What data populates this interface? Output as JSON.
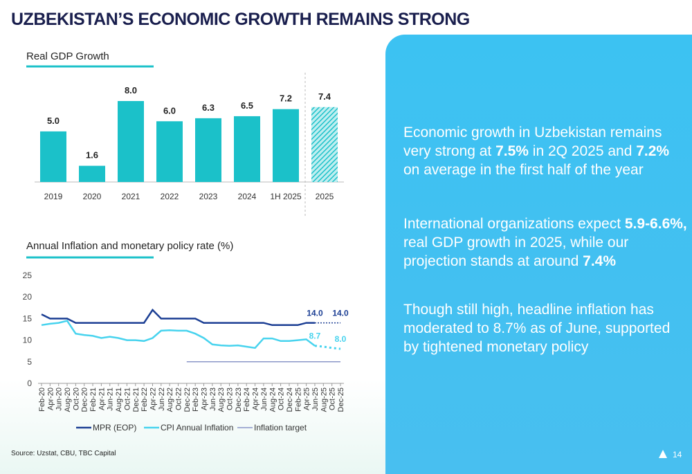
{
  "title": "UZBEKISTAN’S ECONOMIC GROWTH REMAINS STRONG",
  "chart_data": [
    {
      "type": "bar",
      "title": "Real GDP Growth",
      "categories": [
        "2019",
        "2020",
        "2021",
        "2022",
        "2023",
        "2024",
        "1H 2025",
        "2025"
      ],
      "values": [
        5.0,
        1.6,
        8.0,
        6.0,
        6.3,
        6.5,
        7.2,
        7.4
      ],
      "value_labels": [
        "5.0",
        "1.6",
        "8.0",
        "6.0",
        "6.3",
        "6.5",
        "7.2",
        "7.4"
      ],
      "hatched": [
        false,
        false,
        false,
        false,
        false,
        false,
        false,
        true
      ],
      "color": "#1bc1c9"
    },
    {
      "type": "line",
      "title": "Annual Inflation and monetary policy rate (%)",
      "categories": [
        "Feb-20",
        "Apr-20",
        "Jun-20",
        "Aug-20",
        "Oct-20",
        "Dec-20",
        "Feb-21",
        "Apr-21",
        "Jun-21",
        "Aug-21",
        "Oct-21",
        "Dec-21",
        "Feb-22",
        "Apr-22",
        "Jun-22",
        "Aug-22",
        "Oct-22",
        "Dec-22",
        "Feb-23",
        "Apr-23",
        "Jun-23",
        "Aug-23",
        "Oct-23",
        "Dec-23",
        "Feb-24",
        "Apr-24",
        "Jun-24",
        "Aug-24",
        "Oct-24",
        "Dec-24",
        "Feb-25",
        "Apr-25",
        "Jun-25",
        "Aug-25",
        "Oct-25",
        "Dec-25"
      ],
      "ylim": [
        0,
        25
      ],
      "yticks": [
        0,
        5,
        10,
        15,
        20,
        25
      ],
      "legend": "bottom",
      "series": [
        {
          "name": "MPR (EOP)",
          "color": "#1c3f94",
          "values": [
            16,
            15,
            15,
            15,
            14,
            14,
            14,
            14,
            14,
            14,
            14,
            14,
            14,
            17,
            15,
            15,
            15,
            15,
            15,
            14,
            14,
            14,
            14,
            14,
            14,
            14,
            14,
            13.5,
            13.5,
            13.5,
            13.5,
            14,
            14,
            null,
            null,
            null
          ],
          "value_labels": [
            null,
            null,
            null,
            null,
            null,
            null,
            null,
            null,
            null,
            null,
            null,
            null,
            null,
            null,
            null,
            null,
            null,
            null,
            null,
            null,
            null,
            null,
            null,
            null,
            null,
            null,
            null,
            null,
            null,
            null,
            null,
            null,
            "14.0",
            null,
            null,
            null
          ],
          "forecast_values": [
            null,
            null,
            null,
            null,
            null,
            null,
            null,
            null,
            null,
            null,
            null,
            null,
            null,
            null,
            null,
            null,
            null,
            null,
            null,
            null,
            null,
            null,
            null,
            null,
            null,
            null,
            null,
            null,
            null,
            null,
            null,
            null,
            14,
            14,
            14,
            14
          ],
          "forecast_labels": [
            null,
            null,
            null,
            null,
            null,
            null,
            null,
            null,
            null,
            null,
            null,
            null,
            null,
            null,
            null,
            null,
            null,
            null,
            null,
            null,
            null,
            null,
            null,
            null,
            null,
            null,
            null,
            null,
            null,
            null,
            null,
            null,
            null,
            null,
            null,
            "14.0"
          ]
        },
        {
          "name": "CPI Annual Inflation",
          "color": "#47d3ee",
          "values": [
            13.5,
            13.8,
            14,
            14.5,
            11.5,
            11.2,
            11,
            10.5,
            10.8,
            10.5,
            10,
            10,
            9.8,
            10.5,
            12.2,
            12.3,
            12.2,
            12.2,
            11.5,
            10.5,
            9,
            8.8,
            8.7,
            8.8,
            8.5,
            8.2,
            10.4,
            10.4,
            9.8,
            9.8,
            10,
            10.2,
            8.7,
            null,
            null,
            null
          ],
          "value_labels": [
            null,
            null,
            null,
            null,
            null,
            null,
            null,
            null,
            null,
            null,
            null,
            null,
            null,
            null,
            null,
            null,
            null,
            null,
            null,
            null,
            null,
            null,
            null,
            null,
            null,
            null,
            null,
            null,
            null,
            null,
            null,
            null,
            "8.7",
            null,
            null,
            null
          ],
          "forecast_values": [
            null,
            null,
            null,
            null,
            null,
            null,
            null,
            null,
            null,
            null,
            null,
            null,
            null,
            null,
            null,
            null,
            null,
            null,
            null,
            null,
            null,
            null,
            null,
            null,
            null,
            null,
            null,
            null,
            null,
            null,
            null,
            null,
            8.7,
            8.5,
            8.2,
            8.0
          ],
          "forecast_labels": [
            null,
            null,
            null,
            null,
            null,
            null,
            null,
            null,
            null,
            null,
            null,
            null,
            null,
            null,
            null,
            null,
            null,
            null,
            null,
            null,
            null,
            null,
            null,
            null,
            null,
            null,
            null,
            null,
            null,
            null,
            null,
            null,
            null,
            null,
            null,
            "8.0"
          ]
        },
        {
          "name": "Inflation target",
          "color": "#8a96c8",
          "values": [
            null,
            null,
            null,
            null,
            null,
            null,
            null,
            null,
            null,
            null,
            null,
            null,
            null,
            null,
            null,
            null,
            null,
            5,
            5,
            5,
            5,
            5,
            5,
            5,
            5,
            5,
            5,
            5,
            5,
            5,
            5,
            5,
            5,
            5,
            5,
            5
          ]
        }
      ]
    }
  ],
  "panel": [
    [
      {
        "text": "Economic growth in Uzbekistan remains very strong at ",
        "bold": false
      },
      {
        "text": "7.5%",
        "bold": true
      },
      {
        "text": " in 2Q 2025 and ",
        "bold": false
      },
      {
        "text": "7.2%",
        "bold": true
      },
      {
        "text": " on average in the first half of the year",
        "bold": false
      }
    ],
    [
      {
        "text": "International organizations expect ",
        "bold": false
      },
      {
        "text": "5.9-6.6%,",
        "bold": true
      },
      {
        "text": " real GDP growth in 2025, while our projection stands at around ",
        "bold": false
      },
      {
        "text": "7.4%",
        "bold": true
      }
    ],
    [
      {
        "text": "Though still high, headline inflation has moderated to 8.7% as of June, supported by tightened monetary policy",
        "bold": false
      }
    ]
  ],
  "source": "Source: Uzstat, CBU, TBC Capital",
  "page_number": "14"
}
